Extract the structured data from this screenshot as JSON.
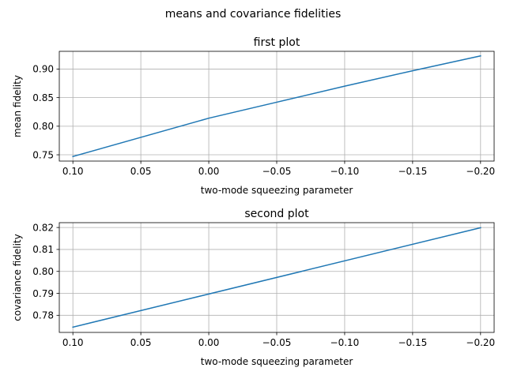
{
  "figure": {
    "title": "means and covariance fidelities"
  },
  "chart_data": [
    {
      "type": "line",
      "title": "first plot",
      "xlabel": "two-mode squeezing parameter",
      "ylabel": "mean fidelity",
      "xlim": [
        0.11,
        -0.21
      ],
      "ylim": [
        0.739,
        0.931
      ],
      "x_ticks": [
        0.1,
        0.05,
        0.0,
        -0.05,
        -0.1,
        -0.15,
        -0.2
      ],
      "x_tick_labels": [
        "0.10",
        "0.05",
        "0.00",
        "−0.05",
        "−0.10",
        "−0.15",
        "−0.20"
      ],
      "y_ticks": [
        0.75,
        0.8,
        0.85,
        0.9
      ],
      "y_tick_labels": [
        "0.75",
        "0.80",
        "0.85",
        "0.90"
      ],
      "grid": true,
      "series": [
        {
          "color": "#1f77b4",
          "x": [
            0.1,
            0.0,
            -0.05,
            -0.1,
            -0.15,
            -0.2
          ],
          "y": [
            0.747,
            0.814,
            0.842,
            0.87,
            0.897,
            0.923
          ]
        }
      ]
    },
    {
      "type": "line",
      "title": "second plot",
      "xlabel": "two-mode squeezing parameter",
      "ylabel": "covariance fidelity",
      "xlim": [
        0.11,
        -0.21
      ],
      "ylim": [
        0.7722,
        0.8222
      ],
      "x_ticks": [
        0.1,
        0.05,
        0.0,
        -0.05,
        -0.1,
        -0.15,
        -0.2
      ],
      "x_tick_labels": [
        "0.10",
        "0.05",
        "0.00",
        "−0.05",
        "−0.10",
        "−0.15",
        "−0.20"
      ],
      "y_ticks": [
        0.78,
        0.79,
        0.8,
        0.81,
        0.82
      ],
      "y_tick_labels": [
        "0.78",
        "0.79",
        "0.80",
        "0.81",
        "0.82"
      ],
      "grid": true,
      "series": [
        {
          "color": "#1f77b4",
          "x": [
            0.1,
            -0.2
          ],
          "y": [
            0.7746,
            0.8199
          ]
        }
      ]
    }
  ]
}
